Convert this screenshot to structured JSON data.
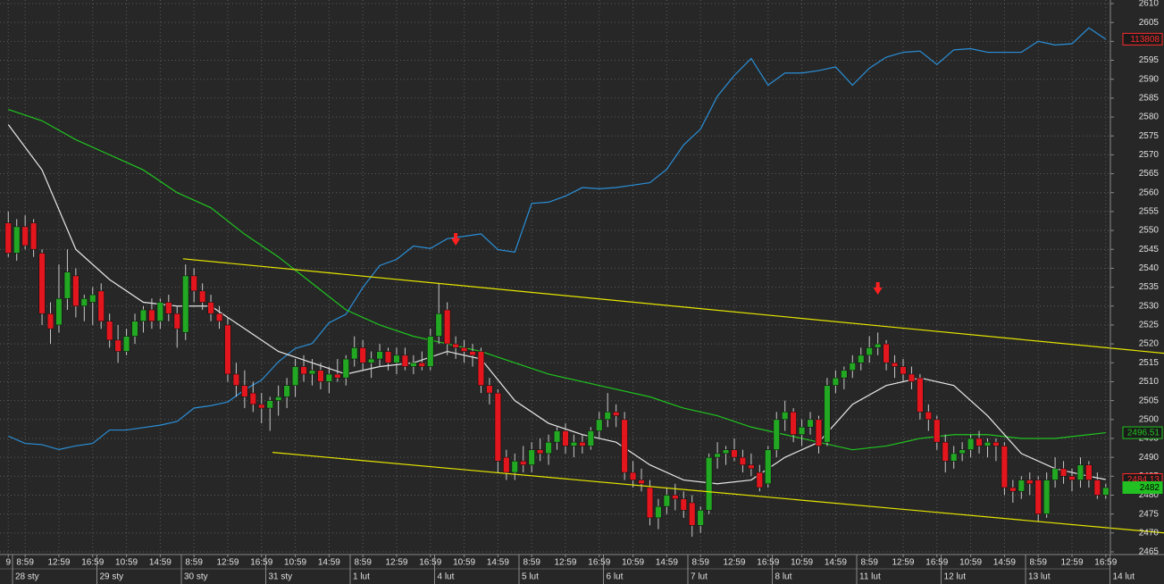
{
  "chart_data": {
    "type": "candlestick",
    "grid": true,
    "xlim": [
      -0.98,
      130.55
    ],
    "ylim": [
      2465,
      2610
    ],
    "yticks": [
      2465,
      2470,
      2475,
      2480,
      2485,
      2490,
      2495,
      2500,
      2505,
      2510,
      2515,
      2520,
      2525,
      2530,
      2535,
      2540,
      2545,
      2550,
      2555,
      2560,
      2565,
      2570,
      2575,
      2580,
      2585,
      2590,
      2595,
      2600,
      2605,
      2610
    ],
    "y2lim": [
      109600,
      114100
    ],
    "xticks": [
      {
        "value": 0,
        "label": "9"
      },
      {
        "value": 2,
        "label": "8:59"
      },
      {
        "value": 6,
        "label": "12:59"
      },
      {
        "value": 10,
        "label": "16:59"
      },
      {
        "value": 14,
        "label": "10:59"
      },
      {
        "value": 18,
        "label": "14:59"
      },
      {
        "value": 22,
        "label": "8:59"
      },
      {
        "value": 26,
        "label": "12:59"
      },
      {
        "value": 30,
        "label": "16:59"
      },
      {
        "value": 34,
        "label": "10:59"
      },
      {
        "value": 38,
        "label": "14:59"
      },
      {
        "value": 42,
        "label": "8:59"
      },
      {
        "value": 46,
        "label": "12:59"
      },
      {
        "value": 50,
        "label": "16:59"
      },
      {
        "value": 54,
        "label": "10:59"
      },
      {
        "value": 58,
        "label": "14:59"
      },
      {
        "value": 62,
        "label": "8:59"
      },
      {
        "value": 66,
        "label": "12:59"
      },
      {
        "value": 70,
        "label": "16:59"
      },
      {
        "value": 74,
        "label": "10:59"
      },
      {
        "value": 78,
        "label": "14:59"
      },
      {
        "value": 82,
        "label": "8:59"
      },
      {
        "value": 86,
        "label": "12:59"
      },
      {
        "value": 90,
        "label": "16:59"
      },
      {
        "value": 94,
        "label": "10:59"
      },
      {
        "value": 98,
        "label": "14:59"
      },
      {
        "value": 102,
        "label": "8:59"
      },
      {
        "value": 106,
        "label": "12:59"
      },
      {
        "value": 110,
        "label": "16:59"
      },
      {
        "value": 114,
        "label": "10:59"
      },
      {
        "value": 118,
        "label": "14:59"
      },
      {
        "value": 122,
        "label": "8:59"
      },
      {
        "value": 126,
        "label": "12:59"
      },
      {
        "value": 130,
        "label": "16:59"
      }
    ],
    "xdates": [
      {
        "value": 1,
        "label": "28 sty"
      },
      {
        "value": 11,
        "label": "29 sty"
      },
      {
        "value": 21,
        "label": "30 sty"
      },
      {
        "value": 31,
        "label": "31 sty"
      },
      {
        "value": 41,
        "label": "1 lut"
      },
      {
        "value": 51,
        "label": "4 lut"
      },
      {
        "value": 61,
        "label": "5 lut"
      },
      {
        "value": 71,
        "label": "6 lut"
      },
      {
        "value": 81,
        "label": "7 lut"
      },
      {
        "value": 91,
        "label": "8 lut"
      },
      {
        "value": 101,
        "label": "11 lut"
      },
      {
        "value": 111,
        "label": "12 lut"
      },
      {
        "value": 121,
        "label": "13 lut"
      },
      {
        "value": 131,
        "label": "14 lut"
      }
    ],
    "candles": {
      "up_color": "#22a822",
      "down_color": "#e3161e",
      "wick_color": "#c8c8c8",
      "tag_color": "#22c022",
      "open": [
        2552,
        2544,
        2551,
        2552,
        2544,
        2528,
        2525,
        2532,
        2538,
        2530,
        2531,
        2534,
        2526,
        2521,
        2518,
        2522,
        2526,
        2529,
        2526,
        2531,
        2528,
        2523,
        2538,
        2534,
        2531,
        2528,
        2525,
        2512,
        2509,
        2507,
        2504,
        2503,
        2505,
        2506,
        2509,
        2514,
        2512,
        2513,
        2510,
        2512,
        2511,
        2516,
        2519,
        2515,
        2516,
        2518,
        2515,
        2517,
        2514,
        2515,
        2514,
        2522,
        2529,
        2520,
        2519,
        2518,
        2518,
        2509,
        2507,
        2490,
        2486,
        2489,
        2488,
        2492,
        2491,
        2494,
        2497,
        2493,
        2494,
        2493,
        2497,
        2500,
        2502,
        2500,
        2486,
        2484,
        2482,
        2474,
        2477,
        2480,
        2479,
        2478,
        2472,
        2476,
        2490,
        2491,
        2492,
        2490,
        2488,
        2486,
        2483,
        2492,
        2500,
        2502,
        2496,
        2498,
        2500,
        2494,
        2509,
        2511,
        2513,
        2515,
        2517,
        2519,
        2520,
        2515,
        2514,
        2512,
        2511,
        2502,
        2500,
        2494,
        2489,
        2491,
        2492,
        2495,
        2493,
        2494,
        2493,
        2482,
        2481,
        2484,
        2484,
        2475,
        2484,
        2487,
        2485,
        2484,
        2488,
        2484,
        2480
      ],
      "high": [
        2555,
        2553,
        2554,
        2553,
        2545,
        2531,
        2541,
        2545,
        2540,
        2533,
        2535,
        2536,
        2528,
        2525,
        2524,
        2528,
        2530,
        2532,
        2532,
        2533,
        2530,
        2541,
        2540,
        2536,
        2533,
        2530,
        2527,
        2515,
        2513,
        2510,
        2507,
        2506,
        2509,
        2511,
        2516,
        2517,
        2516,
        2515,
        2514,
        2516,
        2517,
        2522,
        2521,
        2518,
        2520,
        2519,
        2519,
        2519,
        2517,
        2518,
        2524,
        2536,
        2531,
        2522,
        2521,
        2520,
        2519,
        2511,
        2508,
        2492,
        2491,
        2493,
        2494,
        2495,
        2496,
        2498,
        2499,
        2496,
        2496,
        2498,
        2502,
        2507,
        2504,
        2502,
        2489,
        2487,
        2484,
        2479,
        2482,
        2483,
        2481,
        2480,
        2477,
        2491,
        2494,
        2493,
        2495,
        2492,
        2491,
        2488,
        2493,
        2502,
        2505,
        2503,
        2500,
        2502,
        2501,
        2511,
        2513,
        2514,
        2517,
        2519,
        2522,
        2523,
        2521,
        2517,
        2516,
        2514,
        2512,
        2504,
        2501,
        2496,
        2493,
        2494,
        2496,
        2497,
        2495,
        2495,
        2494,
        2484,
        2485,
        2486,
        2485,
        2486,
        2490,
        2489,
        2487,
        2490,
        2489,
        2486,
        2483
      ],
      "low": [
        2543,
        2542,
        2545,
        2543,
        2525,
        2520,
        2523,
        2529,
        2527,
        2526,
        2525,
        2524,
        2519,
        2515,
        2517,
        2520,
        2523,
        2524,
        2524,
        2526,
        2519,
        2521,
        2531,
        2529,
        2526,
        2524,
        2510,
        2506,
        2503,
        2502,
        2499,
        2497,
        2501,
        2503,
        2506,
        2510,
        2509,
        2508,
        2507,
        2510,
        2509,
        2514,
        2513,
        2511,
        2514,
        2513,
        2512,
        2513,
        2512,
        2513,
        2513,
        2520,
        2517,
        2516,
        2515,
        2514,
        2507,
        2504,
        2486,
        2484,
        2484,
        2486,
        2486,
        2489,
        2488,
        2492,
        2491,
        2490,
        2491,
        2492,
        2495,
        2498,
        2498,
        2484,
        2482,
        2481,
        2472,
        2471,
        2475,
        2476,
        2474,
        2469,
        2470,
        2475,
        2487,
        2488,
        2489,
        2486,
        2485,
        2481,
        2482,
        2490,
        2497,
        2494,
        2493,
        2496,
        2491,
        2493,
        2507,
        2508,
        2511,
        2513,
        2515,
        2517,
        2513,
        2511,
        2510,
        2508,
        2500,
        2497,
        2492,
        2486,
        2487,
        2489,
        2490,
        2491,
        2490,
        2489,
        2480,
        2478,
        2479,
        2480,
        2473,
        2474,
        2482,
        2483,
        2481,
        2482,
        2482,
        2479,
        2479
      ],
      "close": [
        2544,
        2551,
        2546,
        2545,
        2528,
        2524,
        2532,
        2539,
        2530,
        2532,
        2533,
        2526,
        2521,
        2518,
        2522,
        2526,
        2529,
        2526,
        2531,
        2528,
        2524,
        2538,
        2534,
        2531,
        2528,
        2526,
        2512,
        2509,
        2506,
        2504,
        2503,
        2505,
        2506,
        2509,
        2514,
        2512,
        2513,
        2510,
        2512,
        2511,
        2516,
        2519,
        2515,
        2516,
        2518,
        2515,
        2517,
        2514,
        2515,
        2514,
        2522,
        2528,
        2520,
        2519,
        2518,
        2517,
        2509,
        2507,
        2489,
        2486,
        2489,
        2488,
        2492,
        2491,
        2494,
        2497,
        2493,
        2494,
        2493,
        2497,
        2500,
        2502,
        2501,
        2486,
        2484,
        2483,
        2474,
        2477,
        2480,
        2479,
        2476,
        2472,
        2476,
        2490,
        2491,
        2492,
        2490,
        2488,
        2487,
        2482,
        2492,
        2500,
        2502,
        2496,
        2498,
        2500,
        2493,
        2509,
        2511,
        2513,
        2515,
        2517,
        2519,
        2520,
        2515,
        2514,
        2512,
        2510,
        2502,
        2500,
        2494,
        2489,
        2491,
        2492,
        2495,
        2493,
        2494,
        2493,
        2482,
        2481,
        2484,
        2483,
        2475,
        2484,
        2487,
        2485,
        2484,
        2488,
        2484,
        2480,
        2482
      ]
    },
    "series": [
      {
        "color": "#2a8fd8",
        "axis": "y2",
        "tag_color": "#ff2a2a",
        "x": [
          0,
          2,
          4,
          6,
          8,
          10,
          12,
          14,
          16,
          18,
          20,
          22,
          24,
          26,
          28,
          30,
          32,
          34,
          36,
          38,
          40,
          42,
          44,
          46,
          48,
          50,
          52,
          54,
          56,
          58,
          60,
          62,
          64,
          66,
          68,
          70,
          72,
          74,
          76,
          78,
          80,
          82,
          84,
          86,
          88,
          90,
          92,
          94,
          96,
          98,
          100,
          102,
          104,
          106,
          108,
          110,
          112,
          114,
          116,
          118,
          120,
          122,
          124,
          126,
          128,
          130
        ],
        "values": [
          110550,
          110490,
          110480,
          110440,
          110470,
          110490,
          110600,
          110600,
          110620,
          110640,
          110670,
          110780,
          110800,
          110830,
          110930,
          111010,
          111160,
          111270,
          111310,
          111480,
          111550,
          111770,
          111950,
          112000,
          112110,
          112090,
          112170,
          112190,
          112210,
          112080,
          112060,
          112460,
          112470,
          112520,
          112590,
          112580,
          112590,
          112610,
          112630,
          112740,
          112940,
          113070,
          113340,
          113510,
          113650,
          113430,
          113530,
          113530,
          113550,
          113580,
          113430,
          113570,
          113660,
          113700,
          113710,
          113600,
          113720,
          113730,
          113700,
          113700,
          113700,
          113790,
          113760,
          113770,
          113900,
          113808
        ]
      },
      {
        "color": "#1fc41f",
        "tag_color": "#1fc41f",
        "x": [
          0,
          4,
          8,
          12,
          16,
          20,
          24,
          28,
          32,
          36,
          40,
          44,
          48,
          52,
          56,
          60,
          64,
          68,
          72,
          76,
          80,
          84,
          88,
          92,
          96,
          100,
          104,
          108,
          112,
          116,
          120,
          124,
          128,
          130
        ],
        "values": [
          2582,
          2579,
          2574,
          2570,
          2566,
          2560,
          2556,
          2549,
          2543,
          2536,
          2529,
          2525,
          2522,
          2520,
          2518,
          2515,
          2512,
          2510,
          2508,
          2506,
          2503,
          2501,
          2498,
          2496,
          2494,
          2492,
          2493,
          2495,
          2496,
          2496,
          2495,
          2495,
          2496,
          2496.51
        ]
      },
      {
        "color": "#e8e8e8",
        "tag_color": "#ff2a2a",
        "x": [
          0,
          4,
          8,
          12,
          16,
          20,
          24,
          28,
          32,
          36,
          40,
          44,
          48,
          52,
          56,
          60,
          64,
          68,
          72,
          76,
          80,
          84,
          88,
          92,
          96,
          100,
          104,
          108,
          112,
          116,
          120,
          124,
          128,
          130
        ],
        "values": [
          2578,
          2566,
          2545,
          2537,
          2531,
          2530,
          2530,
          2524,
          2518,
          2515,
          2512,
          2514,
          2515,
          2518,
          2516,
          2505,
          2499,
          2496,
          2494,
          2488,
          2484,
          2483,
          2484,
          2490,
          2494,
          2504,
          2509,
          2511,
          2509,
          2501,
          2491,
          2487,
          2485,
          2484.13
        ]
      }
    ],
    "trendlines": [
      {
        "color": "#e6e600",
        "x": [
          20.7,
          137
        ],
        "y": [
          2542.5,
          2517.5
        ]
      },
      {
        "color": "#e6e600",
        "x": [
          31.3,
          137
        ],
        "y": [
          2491.3,
          2470
        ]
      }
    ],
    "signals": {
      "color": "#ff2020",
      "x": [
        53,
        103
      ],
      "y": [
        2546,
        2533
      ]
    }
  }
}
